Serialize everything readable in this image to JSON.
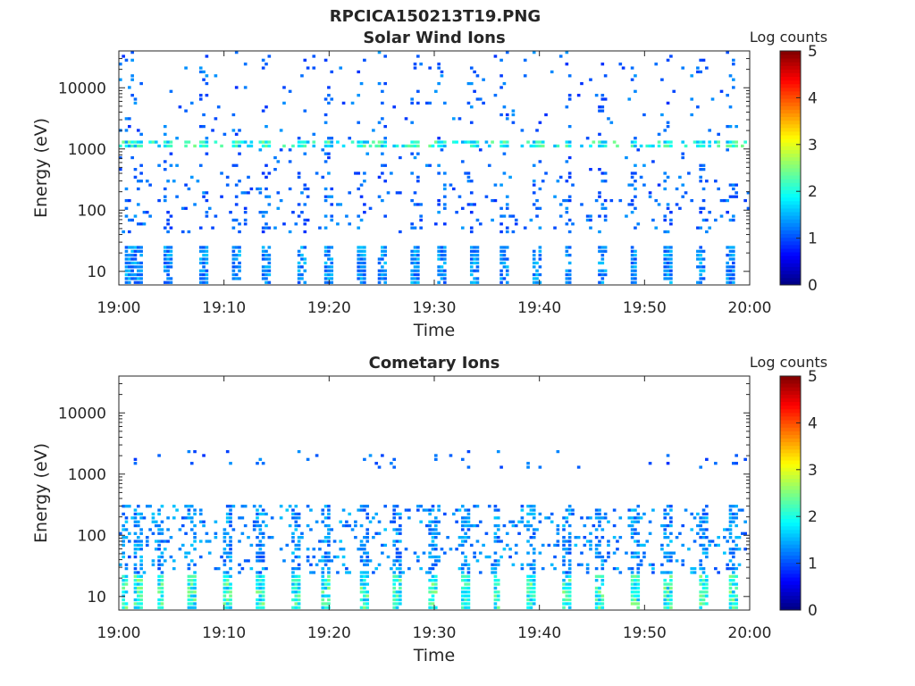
{
  "figure": {
    "title": "RPCICA150213T19.PNG"
  },
  "chart_data": [
    {
      "type": "heatmap",
      "title": "Solar Wind Ions",
      "xlabel": "Time",
      "ylabel": "Energy (eV)",
      "x_ticks": [
        "19:00",
        "19:10",
        "19:20",
        "19:30",
        "19:40",
        "19:50",
        "20:00"
      ],
      "x_range_minutes": [
        0,
        60
      ],
      "y_ticks": [
        "10",
        "100",
        "1000",
        "10000"
      ],
      "y_scale": "log",
      "y_range": [
        6,
        40000
      ],
      "colorbar": {
        "label": "Log counts",
        "ticks": [
          "0",
          "1",
          "2",
          "3",
          "4",
          "5"
        ],
        "range": [
          0,
          5
        ],
        "colormap": "jet"
      },
      "sweep_start_minutes": [
        0.8,
        1.6,
        4.6,
        8.0,
        11.0,
        13.8,
        17.2,
        19.8,
        22.8,
        24.8,
        28.0,
        30.6,
        33.6,
        36.6,
        39.6,
        42.6,
        45.8,
        48.8,
        52.0,
        55.2,
        58.0
      ],
      "bands": [
        {
          "energy_range": [
            6,
            28
          ],
          "level": 1.2,
          "density": 0.55,
          "description": "low-energy stripes"
        },
        {
          "energy_range": [
            40,
            400
          ],
          "level": 1.0,
          "density": 0.12
        },
        {
          "energy_range": [
            1000,
            1400
          ],
          "level": 1.9,
          "density": 0.6
        },
        {
          "energy_range": [
            400,
            40000
          ],
          "level": 1.0,
          "density": 0.05
        }
      ]
    },
    {
      "type": "heatmap",
      "title": "Cometary Ions",
      "xlabel": "Time",
      "ylabel": "Energy (eV)",
      "x_ticks": [
        "19:00",
        "19:10",
        "19:20",
        "19:30",
        "19:40",
        "19:50",
        "20:00"
      ],
      "x_range_minutes": [
        0,
        60
      ],
      "y_ticks": [
        "10",
        "100",
        "1000",
        "10000"
      ],
      "y_scale": "log",
      "y_range": [
        6,
        40000
      ],
      "colorbar": {
        "label": "Log counts",
        "ticks": [
          "0",
          "1",
          "2",
          "3",
          "4",
          "5"
        ],
        "range": [
          0,
          5
        ],
        "colormap": "jet"
      },
      "sweep_start_minutes": [
        0.4,
        1.6,
        3.8,
        6.8,
        10.2,
        13.2,
        16.6,
        19.6,
        23.2,
        26.2,
        29.6,
        32.8,
        35.8,
        39.0,
        42.4,
        45.6,
        49.0,
        52.0,
        55.4,
        58.4
      ],
      "bands": [
        {
          "energy_range": [
            6,
            22
          ],
          "level": 2.0,
          "density": 0.6,
          "description": "low-energy stripes"
        },
        {
          "energy_range": [
            22,
            300
          ],
          "level": 1.2,
          "density": 0.28
        },
        {
          "energy_range": [
            1200,
            2600
          ],
          "level": 1.0,
          "density": 0.05
        }
      ]
    }
  ]
}
